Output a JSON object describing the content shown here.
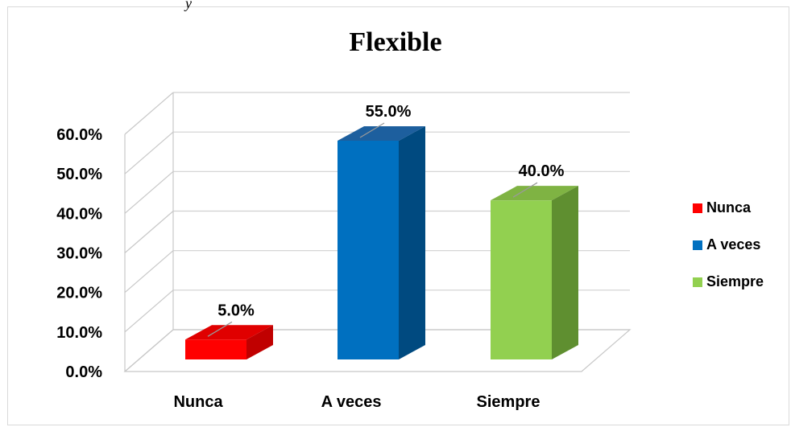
{
  "chart_data": {
    "type": "bar",
    "title": "Flexible",
    "categories": [
      "Nunca",
      "A veces",
      "Siempre"
    ],
    "values": [
      5.0,
      55.0,
      40.0
    ],
    "value_labels": [
      "5.0%",
      "55.0%",
      "40.0%"
    ],
    "y_ticks": [
      "0.0%",
      "10.0%",
      "20.0%",
      "30.0%",
      "40.0%",
      "50.0%",
      "60.0%"
    ],
    "ylim": [
      0,
      60
    ],
    "grid": true,
    "legend_position": "right",
    "legend": [
      "Nunca",
      "A veces",
      "Siempre"
    ],
    "colors": {
      "Nunca": {
        "front": "#ff0000",
        "top": "#e00000",
        "side": "#c00000"
      },
      "A veces": {
        "front": "#0070c0",
        "top": "#1d5f9e",
        "side": "#004a80"
      },
      "Siempre": {
        "front": "#92d050",
        "top": "#7fb343",
        "side": "#5f8f30"
      }
    }
  },
  "page": {
    "top_fragment": "y"
  }
}
